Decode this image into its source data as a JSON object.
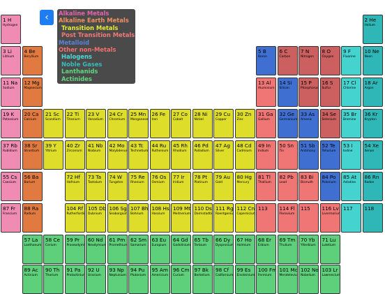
{
  "app": {
    "back_label": "‹",
    "back_icon": "chevron-left-icon"
  },
  "colors": {
    "alkali": "#f08bb4",
    "alkaline_earth": "#e07a40",
    "transition": "#dddd2a",
    "post_transition": "#f07575",
    "metalloid": "#3f6fd0",
    "nonmetal": "#cc6060",
    "halogen": "#45d3d0",
    "noble": "#2fb7b7",
    "lanthanide": "#5ecf7a",
    "actinide": "#5ecf7a",
    "unknown": "#f07575"
  },
  "legend": [
    {
      "label": "Alkaline Metals",
      "color": "#e862b0"
    },
    {
      "label": "Alkaline Earth Metals",
      "color": "#f09060"
    },
    {
      "label": "Transition Metals",
      "color": "#e8e838"
    },
    {
      "label": "Post Transition Metals",
      "color": "#f47878"
    },
    {
      "label": "Metalloid",
      "color": "#5a82d8"
    },
    {
      "label": "Other non-Metals",
      "color": "#f07070"
    },
    {
      "label": "Halogens",
      "color": "#50d8d8"
    },
    {
      "label": "Noble Gases",
      "color": "#38bcbc"
    },
    {
      "label": "Lanthanids",
      "color": "#60d880"
    },
    {
      "label": "Actinides",
      "color": "#60d880"
    }
  ],
  "elements": [
    {
      "sym": "1 H",
      "name": "Hydrogen",
      "row": 0,
      "col": 0,
      "cat": "alkali"
    },
    {
      "sym": "2 He",
      "name": "Helium",
      "row": 0,
      "col": 17,
      "cat": "noble"
    },
    {
      "sym": "3 Li",
      "name": "Lithium",
      "row": 1,
      "col": 0,
      "cat": "alkali"
    },
    {
      "sym": "4 Be",
      "name": "Beryllium",
      "row": 1,
      "col": 1,
      "cat": "alkaline_earth"
    },
    {
      "sym": "5 B",
      "name": "Boron",
      "row": 1,
      "col": 12,
      "cat": "metalloid"
    },
    {
      "sym": "6 C",
      "name": "Carbon",
      "row": 1,
      "col": 13,
      "cat": "nonmetal"
    },
    {
      "sym": "7 N",
      "name": "Nitrogen",
      "row": 1,
      "col": 14,
      "cat": "nonmetal"
    },
    {
      "sym": "8 O",
      "name": "Oxygen",
      "row": 1,
      "col": 15,
      "cat": "nonmetal"
    },
    {
      "sym": "9 F",
      "name": "Fluorine",
      "row": 1,
      "col": 16,
      "cat": "halogen"
    },
    {
      "sym": "10 Ne",
      "name": "Neon",
      "row": 1,
      "col": 17,
      "cat": "noble"
    },
    {
      "sym": "11 Na",
      "name": "Sodium",
      "row": 2,
      "col": 0,
      "cat": "alkali"
    },
    {
      "sym": "12 Mg",
      "name": "Magnesium",
      "row": 2,
      "col": 1,
      "cat": "alkaline_earth"
    },
    {
      "sym": "13 Al",
      "name": "Aluminium",
      "row": 2,
      "col": 12,
      "cat": "post_transition"
    },
    {
      "sym": "14 Si",
      "name": "Silicon",
      "row": 2,
      "col": 13,
      "cat": "metalloid"
    },
    {
      "sym": "15 P",
      "name": "Phosphorus",
      "row": 2,
      "col": 14,
      "cat": "nonmetal"
    },
    {
      "sym": "16 S",
      "name": "Sulfur",
      "row": 2,
      "col": 15,
      "cat": "nonmetal"
    },
    {
      "sym": "17 Cl",
      "name": "Chlorine",
      "row": 2,
      "col": 16,
      "cat": "halogen"
    },
    {
      "sym": "18 Ar",
      "name": "Argon",
      "row": 2,
      "col": 17,
      "cat": "noble"
    },
    {
      "sym": "19 K",
      "name": "Potassium",
      "row": 3,
      "col": 0,
      "cat": "alkali"
    },
    {
      "sym": "20 Ca",
      "name": "Calcium",
      "row": 3,
      "col": 1,
      "cat": "alkaline_earth"
    },
    {
      "sym": "21 Sc",
      "name": "Scandium",
      "row": 3,
      "col": 2,
      "cat": "transition"
    },
    {
      "sym": "22 Ti",
      "name": "Titanium",
      "row": 3,
      "col": 3,
      "cat": "transition"
    },
    {
      "sym": "23 V",
      "name": "Vanadium",
      "row": 3,
      "col": 4,
      "cat": "transition"
    },
    {
      "sym": "24 Cr",
      "name": "Chromium",
      "row": 3,
      "col": 5,
      "cat": "transition"
    },
    {
      "sym": "25 Mn",
      "name": "Manganese",
      "row": 3,
      "col": 6,
      "cat": "transition"
    },
    {
      "sym": "26 Fe",
      "name": "Iron",
      "row": 3,
      "col": 7,
      "cat": "transition"
    },
    {
      "sym": "27 Co",
      "name": "Cobalt",
      "row": 3,
      "col": 8,
      "cat": "transition"
    },
    {
      "sym": "28 Ni",
      "name": "Nickel",
      "row": 3,
      "col": 9,
      "cat": "transition"
    },
    {
      "sym": "29 Cu",
      "name": "Copper",
      "row": 3,
      "col": 10,
      "cat": "transition"
    },
    {
      "sym": "30 Zn",
      "name": "Zinc",
      "row": 3,
      "col": 11,
      "cat": "transition"
    },
    {
      "sym": "31 Ga",
      "name": "Gallium",
      "row": 3,
      "col": 12,
      "cat": "post_transition"
    },
    {
      "sym": "32 Ge",
      "name": "Germanium",
      "row": 3,
      "col": 13,
      "cat": "metalloid"
    },
    {
      "sym": "33 As",
      "name": "Arsenic",
      "row": 3,
      "col": 14,
      "cat": "metalloid"
    },
    {
      "sym": "34 Se",
      "name": "Selenium",
      "row": 3,
      "col": 15,
      "cat": "nonmetal"
    },
    {
      "sym": "35 Br",
      "name": "Bromine",
      "row": 3,
      "col": 16,
      "cat": "halogen"
    },
    {
      "sym": "36 Kr",
      "name": "Krypton",
      "row": 3,
      "col": 17,
      "cat": "noble"
    },
    {
      "sym": "37 Rb",
      "name": "Rubidium",
      "row": 4,
      "col": 0,
      "cat": "alkali"
    },
    {
      "sym": "38 Sr",
      "name": "Strontium",
      "row": 4,
      "col": 1,
      "cat": "alkaline_earth"
    },
    {
      "sym": "39 Y",
      "name": "Yttrium",
      "row": 4,
      "col": 2,
      "cat": "transition"
    },
    {
      "sym": "40 Zr",
      "name": "Zirconium",
      "row": 4,
      "col": 3,
      "cat": "transition"
    },
    {
      "sym": "41 Nb",
      "name": "Niobium",
      "row": 4,
      "col": 4,
      "cat": "transition"
    },
    {
      "sym": "42 Mo",
      "name": "Molybdenum",
      "row": 4,
      "col": 5,
      "cat": "transition"
    },
    {
      "sym": "43 Tc",
      "name": "Technetium",
      "row": 4,
      "col": 6,
      "cat": "transition"
    },
    {
      "sym": "44 Ru",
      "name": "Ruthenium",
      "row": 4,
      "col": 7,
      "cat": "transition"
    },
    {
      "sym": "45 Rh",
      "name": "Rhodium",
      "row": 4,
      "col": 8,
      "cat": "transition"
    },
    {
      "sym": "46 Pd",
      "name": "Palladium",
      "row": 4,
      "col": 9,
      "cat": "transition"
    },
    {
      "sym": "47 Ag",
      "name": "Silver",
      "row": 4,
      "col": 10,
      "cat": "transition"
    },
    {
      "sym": "48 Cd",
      "name": "Cadmium",
      "row": 4,
      "col": 11,
      "cat": "transition"
    },
    {
      "sym": "49 In",
      "name": "Indium",
      "row": 4,
      "col": 12,
      "cat": "post_transition"
    },
    {
      "sym": "50 Sn",
      "name": "Tin",
      "row": 4,
      "col": 13,
      "cat": "post_transition"
    },
    {
      "sym": "51 Sb",
      "name": "Antimony",
      "row": 4,
      "col": 14,
      "cat": "metalloid"
    },
    {
      "sym": "52 Te",
      "name": "Tellurium",
      "row": 4,
      "col": 15,
      "cat": "metalloid"
    },
    {
      "sym": "53 I",
      "name": "Iodine",
      "row": 4,
      "col": 16,
      "cat": "halogen"
    },
    {
      "sym": "54 Xe",
      "name": "Xenon",
      "row": 4,
      "col": 17,
      "cat": "noble"
    },
    {
      "sym": "55 Cs",
      "name": "Caesium",
      "row": 5,
      "col": 0,
      "cat": "alkali"
    },
    {
      "sym": "56 Ba",
      "name": "Barium",
      "row": 5,
      "col": 1,
      "cat": "alkaline_earth"
    },
    {
      "sym": "72 Hf",
      "name": "Hafnium",
      "row": 5,
      "col": 3,
      "cat": "transition"
    },
    {
      "sym": "73 Ta",
      "name": "Tantalum",
      "row": 5,
      "col": 4,
      "cat": "transition"
    },
    {
      "sym": "74 W",
      "name": "Tungsten",
      "row": 5,
      "col": 5,
      "cat": "transition"
    },
    {
      "sym": "75 Re",
      "name": "Rhenium",
      "row": 5,
      "col": 6,
      "cat": "transition"
    },
    {
      "sym": "76 Os",
      "name": "Osmium",
      "row": 5,
      "col": 7,
      "cat": "transition"
    },
    {
      "sym": "77 Ir",
      "name": "Iridium",
      "row": 5,
      "col": 8,
      "cat": "transition"
    },
    {
      "sym": "78 Pt",
      "name": "Platinum",
      "row": 5,
      "col": 9,
      "cat": "transition"
    },
    {
      "sym": "79 Au",
      "name": "Gold",
      "row": 5,
      "col": 10,
      "cat": "transition"
    },
    {
      "sym": "80 Hg",
      "name": "Mercury",
      "row": 5,
      "col": 11,
      "cat": "transition"
    },
    {
      "sym": "81 Tl",
      "name": "Thallium",
      "row": 5,
      "col": 12,
      "cat": "post_transition"
    },
    {
      "sym": "82 Pb",
      "name": "Lead",
      "row": 5,
      "col": 13,
      "cat": "post_transition"
    },
    {
      "sym": "83 Bi",
      "name": "Bismuth",
      "row": 5,
      "col": 14,
      "cat": "post_transition"
    },
    {
      "sym": "84 Po",
      "name": "Polonium",
      "row": 5,
      "col": 15,
      "cat": "metalloid"
    },
    {
      "sym": "85 At",
      "name": "Astatine",
      "row": 5,
      "col": 16,
      "cat": "halogen"
    },
    {
      "sym": "86 Rn",
      "name": "Radon",
      "row": 5,
      "col": 17,
      "cat": "noble"
    },
    {
      "sym": "87 Fr",
      "name": "Francium",
      "row": 6,
      "col": 0,
      "cat": "alkali"
    },
    {
      "sym": "88 Ra",
      "name": "Radium",
      "row": 6,
      "col": 1,
      "cat": "alkaline_earth"
    },
    {
      "sym": "104 Rf",
      "name": "Rutherfordium",
      "row": 6,
      "col": 3,
      "cat": "transition"
    },
    {
      "sym": "105 Db",
      "name": "Dubnium",
      "row": 6,
      "col": 4,
      "cat": "transition"
    },
    {
      "sym": "106 Sg",
      "name": "Seaborgium",
      "row": 6,
      "col": 5,
      "cat": "transition"
    },
    {
      "sym": "107 Bh",
      "name": "Bohrium",
      "row": 6,
      "col": 6,
      "cat": "transition"
    },
    {
      "sym": "108 Hs",
      "name": "Hassium",
      "row": 6,
      "col": 7,
      "cat": "transition"
    },
    {
      "sym": "109 Mt",
      "name": "Meitnerium",
      "row": 6,
      "col": 8,
      "cat": "transition"
    },
    {
      "sym": "110 Ds",
      "name": "Darmstadtium",
      "row": 6,
      "col": 9,
      "cat": "transition"
    },
    {
      "sym": "111 Rg",
      "name": "Roentgenium",
      "row": 6,
      "col": 10,
      "cat": "transition"
    },
    {
      "sym": "112 Cn",
      "name": "Copernicium",
      "row": 6,
      "col": 11,
      "cat": "transition"
    },
    {
      "sym": "113",
      "name": "",
      "row": 6,
      "col": 12,
      "cat": "unknown"
    },
    {
      "sym": "114 Fl",
      "name": "Flerovium",
      "row": 6,
      "col": 13,
      "cat": "unknown"
    },
    {
      "sym": "115",
      "name": "",
      "row": 6,
      "col": 14,
      "cat": "unknown"
    },
    {
      "sym": "116 Lv",
      "name": "Livermorium",
      "row": 6,
      "col": 15,
      "cat": "unknown"
    },
    {
      "sym": "117",
      "name": "",
      "row": 6,
      "col": 16,
      "cat": "halogen"
    },
    {
      "sym": "118",
      "name": "",
      "row": 6,
      "col": 17,
      "cat": "noble"
    },
    {
      "sym": "57 La",
      "name": "Lanthanum",
      "row": 7,
      "col": 1,
      "cat": "lanthanide"
    },
    {
      "sym": "58 Ce",
      "name": "Cerium",
      "row": 7,
      "col": 2,
      "cat": "lanthanide"
    },
    {
      "sym": "59 Pr",
      "name": "Praseodymium",
      "row": 7,
      "col": 3,
      "cat": "lanthanide"
    },
    {
      "sym": "60 Nd",
      "name": "Neodymium",
      "row": 7,
      "col": 4,
      "cat": "lanthanide"
    },
    {
      "sym": "61 Pm",
      "name": "Promethium",
      "row": 7,
      "col": 5,
      "cat": "lanthanide"
    },
    {
      "sym": "62 Sm",
      "name": "Samarium",
      "row": 7,
      "col": 6,
      "cat": "lanthanide"
    },
    {
      "sym": "63 Eu",
      "name": "Europium",
      "row": 7,
      "col": 7,
      "cat": "lanthanide"
    },
    {
      "sym": "64 Gd",
      "name": "Gadolinium",
      "row": 7,
      "col": 8,
      "cat": "lanthanide"
    },
    {
      "sym": "65 Tb",
      "name": "Terbium",
      "row": 7,
      "col": 9,
      "cat": "lanthanide"
    },
    {
      "sym": "66 Dy",
      "name": "Dysprosium",
      "row": 7,
      "col": 10,
      "cat": "lanthanide"
    },
    {
      "sym": "67 Ho",
      "name": "Holmium",
      "row": 7,
      "col": 11,
      "cat": "lanthanide"
    },
    {
      "sym": "68 Er",
      "name": "Erbium",
      "row": 7,
      "col": 12,
      "cat": "lanthanide"
    },
    {
      "sym": "69 Tm",
      "name": "Thulium",
      "row": 7,
      "col": 13,
      "cat": "lanthanide"
    },
    {
      "sym": "70 Yb",
      "name": "Ytterbium",
      "row": 7,
      "col": 14,
      "cat": "lanthanide"
    },
    {
      "sym": "71 Lu",
      "name": "Lutetium",
      "row": 7,
      "col": 15,
      "cat": "lanthanide"
    },
    {
      "sym": "89 Ac",
      "name": "Actinium",
      "row": 8,
      "col": 1,
      "cat": "actinide"
    },
    {
      "sym": "90 Th",
      "name": "Thorium",
      "row": 8,
      "col": 2,
      "cat": "actinide"
    },
    {
      "sym": "91 Pa",
      "name": "Protactinium",
      "row": 8,
      "col": 3,
      "cat": "actinide"
    },
    {
      "sym": "92 U",
      "name": "Uranium",
      "row": 8,
      "col": 4,
      "cat": "actinide"
    },
    {
      "sym": "93 Np",
      "name": "Neptunium",
      "row": 8,
      "col": 5,
      "cat": "actinide"
    },
    {
      "sym": "94 Pu",
      "name": "Plutonium",
      "row": 8,
      "col": 6,
      "cat": "actinide"
    },
    {
      "sym": "95 Am",
      "name": "Americium",
      "row": 8,
      "col": 7,
      "cat": "actinide"
    },
    {
      "sym": "96 Cm",
      "name": "Curium",
      "row": 8,
      "col": 8,
      "cat": "actinide"
    },
    {
      "sym": "97 Bk",
      "name": "Berkelium",
      "row": 8,
      "col": 9,
      "cat": "actinide"
    },
    {
      "sym": "98 Cf",
      "name": "Californium",
      "row": 8,
      "col": 10,
      "cat": "actinide"
    },
    {
      "sym": "99 Es",
      "name": "Einsteinium",
      "row": 8,
      "col": 11,
      "cat": "actinide"
    },
    {
      "sym": "100 Fm",
      "name": "Fermium",
      "row": 8,
      "col": 12,
      "cat": "actinide"
    },
    {
      "sym": "101 Md",
      "name": "Mendelevium",
      "row": 8,
      "col": 13,
      "cat": "actinide"
    },
    {
      "sym": "102 No",
      "name": "Nobelium",
      "row": 8,
      "col": 14,
      "cat": "actinide"
    },
    {
      "sym": "103 Lr",
      "name": "Lawrencium",
      "row": 8,
      "col": 15,
      "cat": "actinide"
    }
  ]
}
